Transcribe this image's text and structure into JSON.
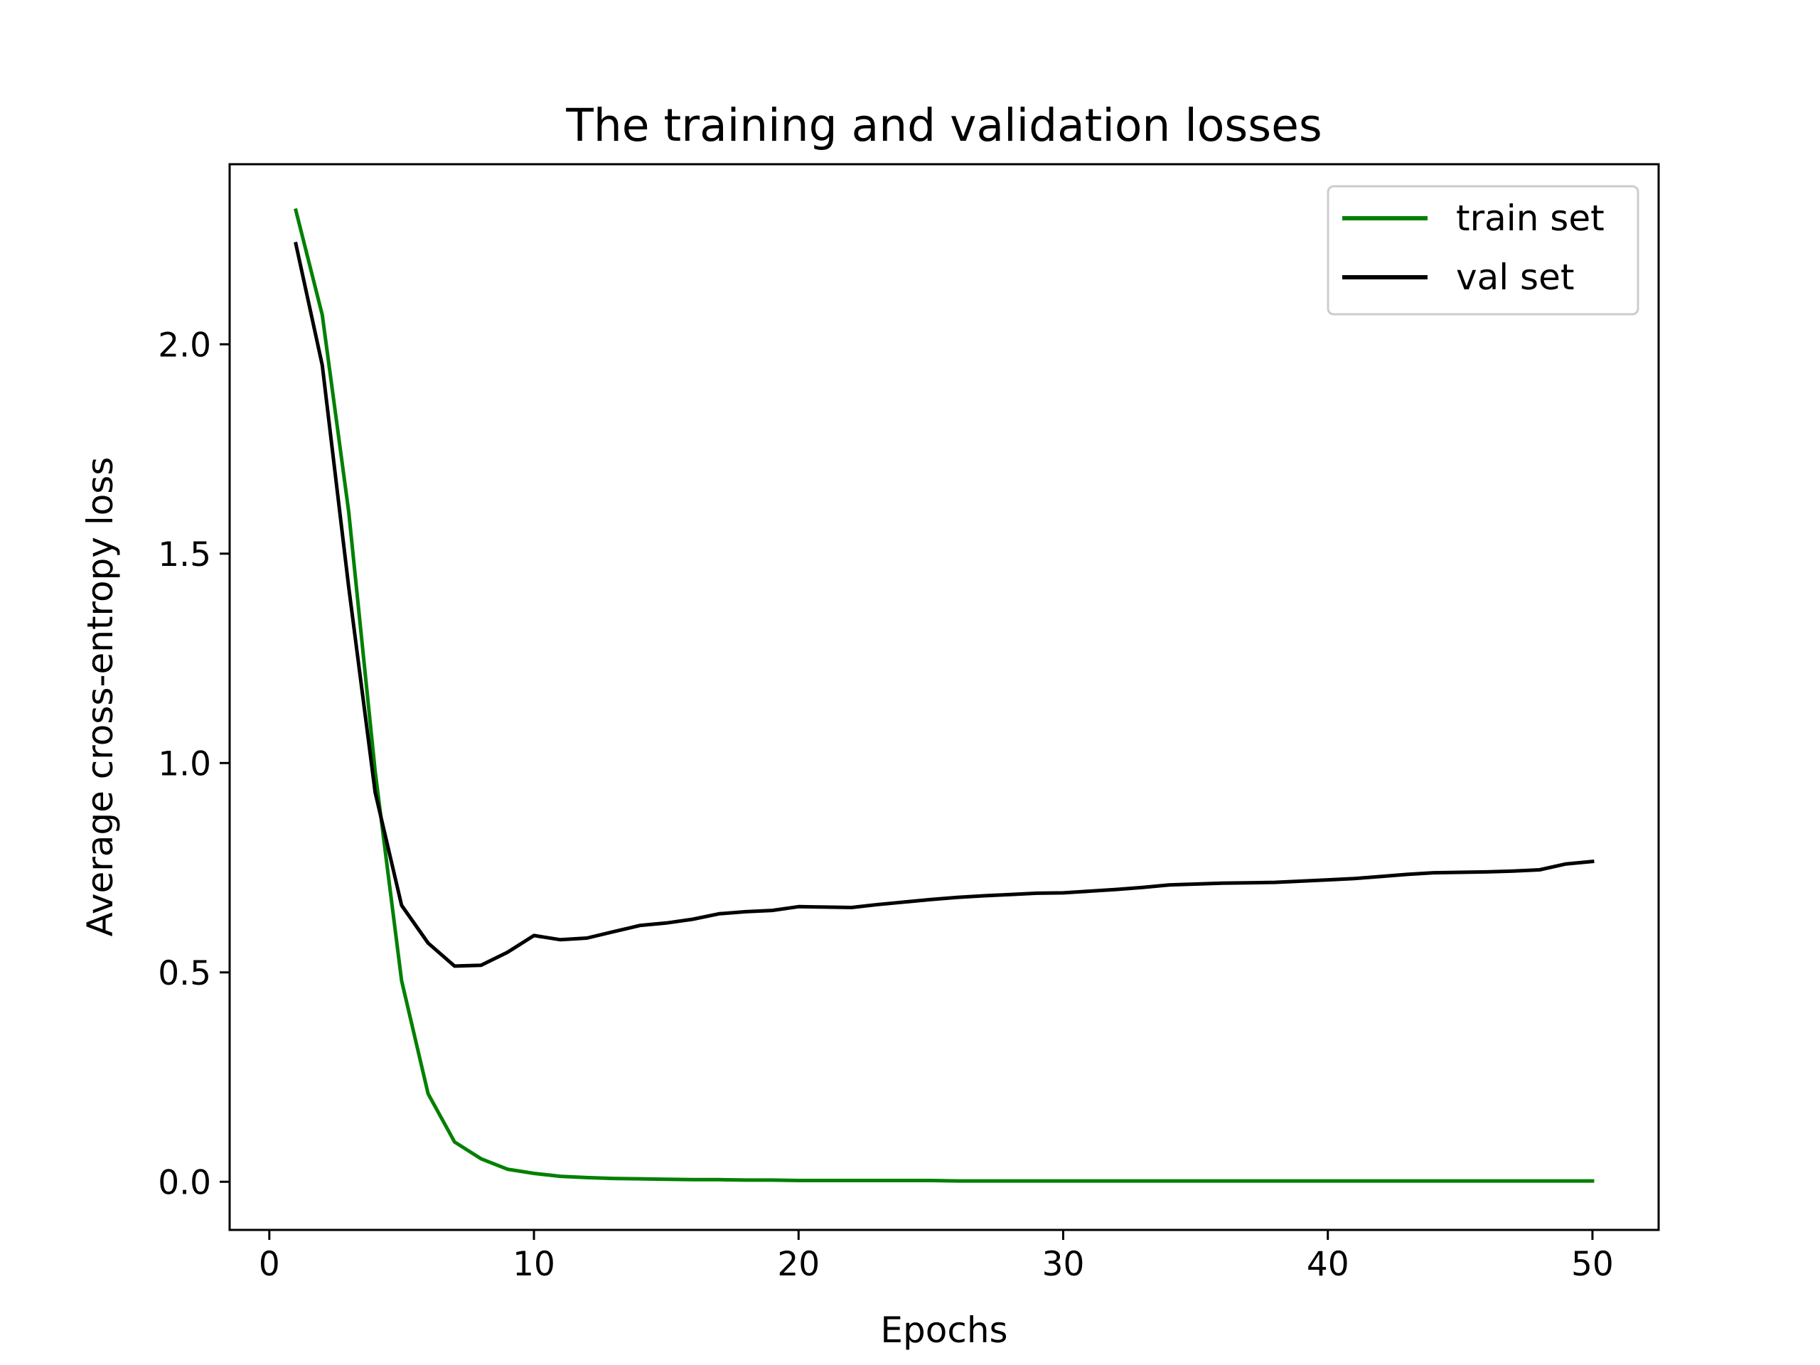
{
  "chart_data": {
    "type": "line",
    "title": "The training and validation losses",
    "xlabel": "Epochs",
    "ylabel": "Average cross-entropy loss",
    "xlim": [
      -1.5,
      52.5
    ],
    "ylim": [
      -0.115,
      2.43
    ],
    "xticks": [
      0,
      10,
      20,
      30,
      40,
      50
    ],
    "xtick_labels": [
      "0",
      "10",
      "20",
      "30",
      "40",
      "50"
    ],
    "yticks": [
      0.0,
      0.5,
      1.0,
      1.5,
      2.0
    ],
    "ytick_labels": [
      "0.0",
      "0.5",
      "1.0",
      "1.5",
      "2.0"
    ],
    "grid": false,
    "legend_position": "top-right",
    "x": [
      1,
      2,
      3,
      4,
      5,
      6,
      7,
      8,
      9,
      10,
      11,
      12,
      13,
      14,
      15,
      16,
      17,
      18,
      19,
      20,
      21,
      22,
      23,
      24,
      25,
      26,
      27,
      28,
      29,
      30,
      31,
      32,
      33,
      34,
      35,
      36,
      37,
      38,
      39,
      40,
      41,
      42,
      43,
      44,
      45,
      46,
      47,
      48,
      49,
      50
    ],
    "series": [
      {
        "name": "train set",
        "color": "#008000",
        "values": [
          2.32,
          2.07,
          1.6,
          0.98,
          0.48,
          0.21,
          0.095,
          0.055,
          0.03,
          0.02,
          0.013,
          0.01,
          0.008,
          0.007,
          0.006,
          0.005,
          0.005,
          0.004,
          0.004,
          0.003,
          0.003,
          0.003,
          0.003,
          0.003,
          0.003,
          0.002,
          0.002,
          0.002,
          0.002,
          0.002,
          0.002,
          0.002,
          0.002,
          0.002,
          0.002,
          0.002,
          0.002,
          0.002,
          0.002,
          0.002,
          0.002,
          0.002,
          0.002,
          0.002,
          0.002,
          0.002,
          0.002,
          0.002,
          0.002,
          0.002
        ]
      },
      {
        "name": "val set",
        "color": "#000000",
        "values": [
          2.24,
          1.95,
          1.42,
          0.93,
          0.66,
          0.57,
          0.515,
          0.517,
          0.548,
          0.588,
          0.578,
          0.582,
          0.597,
          0.612,
          0.618,
          0.627,
          0.64,
          0.645,
          0.648,
          0.657,
          0.656,
          0.655,
          0.662,
          0.668,
          0.674,
          0.679,
          0.683,
          0.686,
          0.689,
          0.69,
          0.694,
          0.698,
          0.703,
          0.709,
          0.711,
          0.713,
          0.714,
          0.715,
          0.718,
          0.721,
          0.724,
          0.729,
          0.734,
          0.738,
          0.739,
          0.74,
          0.742,
          0.745,
          0.759,
          0.765
        ]
      }
    ]
  }
}
